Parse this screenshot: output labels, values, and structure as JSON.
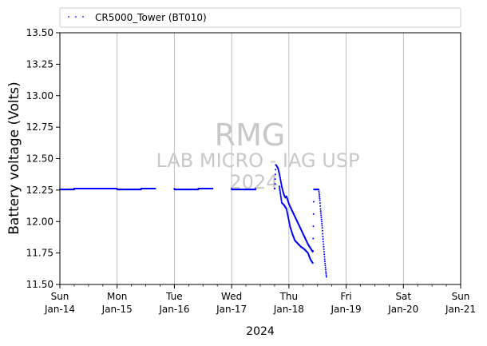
{
  "chart_data": {
    "type": "scatter",
    "title": "",
    "xlabel": "2024",
    "ylabel": "Battery voltage (Volts)",
    "x_axis": "date",
    "xlim": [
      "2024-01-14",
      "2024-01-21"
    ],
    "ylim": [
      11.5,
      13.5
    ],
    "grid": "x-major",
    "legend_position": "top",
    "y_ticks": [
      "11.50",
      "11.75",
      "12.00",
      "12.25",
      "12.50",
      "12.75",
      "13.00",
      "13.25",
      "13.50"
    ],
    "x_ticks": [
      {
        "day": "Sun",
        "date": "Jan-14"
      },
      {
        "day": "Mon",
        "date": "Jan-15"
      },
      {
        "day": "Tue",
        "date": "Jan-16"
      },
      {
        "day": "Wed",
        "date": "Jan-17"
      },
      {
        "day": "Thu",
        "date": "Jan-18"
      },
      {
        "day": "Fri",
        "date": "Jan-19"
      },
      {
        "day": "Sat",
        "date": "Jan-20"
      },
      {
        "day": "Sun",
        "date": "Jan-21"
      }
    ],
    "watermark": {
      "line1": "RMG",
      "line2": "LAB MICRO - IAG USP",
      "line3": "2024"
    },
    "series": [
      {
        "name": "CR5000_Tower (BT010)",
        "color": "#0000ff",
        "marker": "dot",
        "points": [
          [
            "2024-01-14T00:00",
            12.255
          ],
          [
            "2024-01-14T06:00",
            12.255
          ],
          [
            "2024-01-14T06:01",
            12.262
          ],
          [
            "2024-01-14T12:00",
            12.262
          ],
          [
            "2024-01-14T18:00",
            12.262
          ],
          [
            "2024-01-14T23:59",
            12.262
          ],
          [
            "2024-01-15T00:00",
            12.255
          ],
          [
            "2024-01-15T06:00",
            12.255
          ],
          [
            "2024-01-15T10:00",
            12.255
          ],
          [
            "2024-01-15T10:01",
            12.262
          ],
          [
            "2024-01-15T16:00",
            12.262
          ],
          [
            "2024-01-15T23:59",
            12.262
          ],
          [
            "2024-01-16T00:00",
            12.255
          ],
          [
            "2024-01-16T06:00",
            12.255
          ],
          [
            "2024-01-16T10:00",
            12.255
          ],
          [
            "2024-01-16T10:01",
            12.262
          ],
          [
            "2024-01-16T16:00",
            12.262
          ],
          [
            "2024-01-16T23:59",
            12.262
          ],
          [
            "2024-01-17T00:00",
            12.255
          ],
          [
            "2024-01-17T06:00",
            12.255
          ],
          [
            "2024-01-17T10:00",
            12.255
          ],
          [
            "2024-01-17T10:01",
            12.262
          ],
          [
            "2024-01-17T18:00",
            12.262
          ],
          [
            "2024-01-17T18:05",
            12.262
          ],
          [
            "2024-01-17T18:30",
            12.45
          ],
          [
            "2024-01-17T19:00",
            12.44
          ],
          [
            "2024-01-17T19:30",
            12.42
          ],
          [
            "2024-01-17T20:00",
            12.38
          ],
          [
            "2024-01-17T20:30",
            12.33
          ],
          [
            "2024-01-17T21:00",
            12.28
          ],
          [
            "2024-01-17T21:30",
            12.24
          ],
          [
            "2024-01-17T22:00",
            12.21
          ],
          [
            "2024-01-17T22:30",
            12.19
          ],
          [
            "2024-01-17T23:00",
            12.2
          ],
          [
            "2024-01-17T23:30",
            12.17
          ],
          [
            "2024-01-18T00:00",
            12.14
          ],
          [
            "2024-01-18T01:00",
            12.1
          ],
          [
            "2024-01-18T02:00",
            12.06
          ],
          [
            "2024-01-18T03:00",
            12.02
          ],
          [
            "2024-01-18T04:00",
            11.98
          ],
          [
            "2024-01-18T05:00",
            11.94
          ],
          [
            "2024-01-18T06:00",
            11.9
          ],
          [
            "2024-01-18T07:00",
            11.86
          ],
          [
            "2024-01-18T08:00",
            11.82
          ],
          [
            "2024-01-18T09:00",
            11.79
          ],
          [
            "2024-01-18T10:00",
            11.76
          ],
          [
            "2024-01-17T20:00",
            12.28
          ],
          [
            "2024-01-17T21:00",
            12.15
          ],
          [
            "2024-01-17T22:00",
            12.13
          ],
          [
            "2024-01-17T23:00",
            12.1
          ],
          [
            "2024-01-18T00:30",
            11.96
          ],
          [
            "2024-01-18T01:30",
            11.9
          ],
          [
            "2024-01-18T02:30",
            11.85
          ],
          [
            "2024-01-18T03:30",
            11.83
          ],
          [
            "2024-01-18T05:00",
            11.8
          ],
          [
            "2024-01-18T06:30",
            11.78
          ],
          [
            "2024-01-18T08:00",
            11.75
          ],
          [
            "2024-01-18T09:00",
            11.7
          ],
          [
            "2024-01-18T10:00",
            11.67
          ],
          [
            "2024-01-18T10:30",
            12.255
          ],
          [
            "2024-01-18T11:30",
            12.255
          ],
          [
            "2024-01-18T12:30",
            12.255
          ],
          [
            "2024-01-18T13:00",
            12.17
          ],
          [
            "2024-01-18T13:15",
            12.1
          ],
          [
            "2024-01-18T13:30",
            12.05
          ],
          [
            "2024-01-18T13:45",
            12.0
          ],
          [
            "2024-01-18T14:00",
            11.95
          ],
          [
            "2024-01-18T14:15",
            11.88
          ],
          [
            "2024-01-18T14:30",
            11.82
          ],
          [
            "2024-01-18T14:45",
            11.76
          ],
          [
            "2024-01-18T15:00",
            11.7
          ],
          [
            "2024-01-18T15:15",
            11.65
          ],
          [
            "2024-01-18T15:30",
            11.6
          ],
          [
            "2024-01-18T15:45",
            11.56
          ]
        ]
      }
    ]
  }
}
